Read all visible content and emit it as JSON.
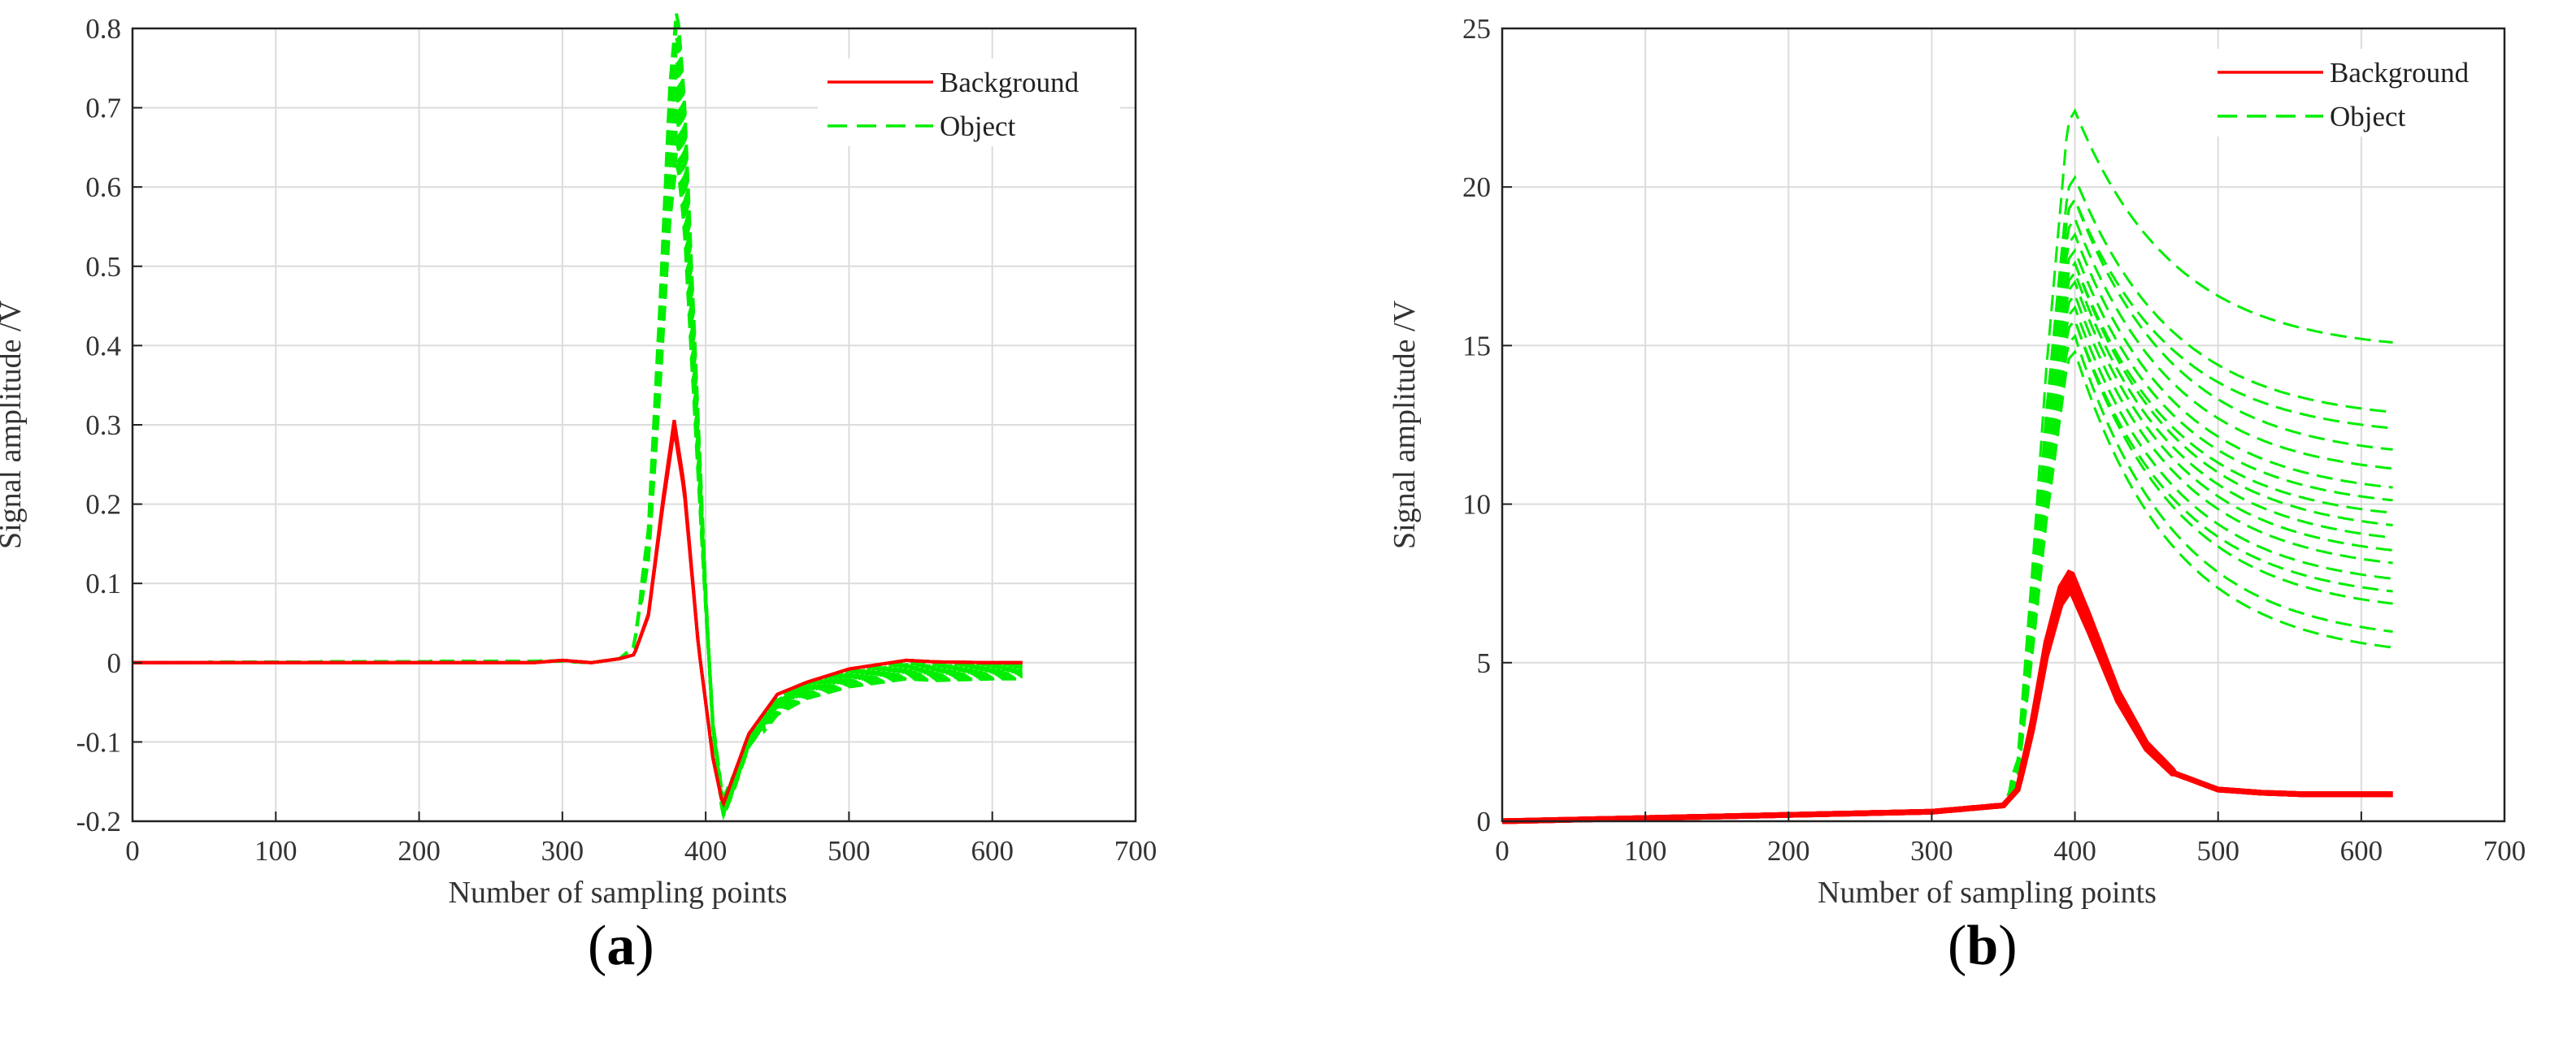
{
  "chart_data": [
    {
      "type": "line",
      "panel_label": "a",
      "xlabel": "Number of sampling points",
      "ylabel": "Signal amplitude /V",
      "xlim": [
        0,
        700
      ],
      "ylim": [
        -0.2,
        0.8
      ],
      "x_ticks": [
        "0",
        "100",
        "200",
        "300",
        "400",
        "500",
        "600",
        "700"
      ],
      "y_ticks": [
        "-0.2",
        "-0.1",
        "0",
        "0.1",
        "0.2",
        "0.3",
        "0.4",
        "0.5",
        "0.6",
        "0.7",
        "0.8"
      ],
      "grid": true,
      "legend_position": "top-right",
      "series": [
        {
          "name": "Background",
          "color": "#ff0000",
          "style": "solid",
          "x": [
            0,
            280,
            300,
            320,
            340,
            350,
            360,
            370,
            378,
            385,
            395,
            405,
            412,
            420,
            430,
            450,
            470,
            500,
            540,
            560,
            600,
            622
          ],
          "y": [
            0,
            0,
            0.003,
            0,
            0.005,
            0.01,
            0.06,
            0.2,
            0.3,
            0.22,
            0.02,
            -0.12,
            -0.18,
            -0.14,
            -0.09,
            -0.04,
            -0.025,
            -0.008,
            0.003,
            0.001,
            0,
            0
          ]
        },
        {
          "name": "Object",
          "color": "#00ee00",
          "style": "dashed",
          "x": [
            0,
            300,
            320,
            340,
            350,
            360,
            368,
            375,
            380,
            385,
            390,
            400,
            405,
            412,
            420,
            430,
            450,
            470,
            500,
            540,
            560,
            600,
            622
          ],
          "y": [
            0,
            0.002,
            0,
            0.005,
            0.02,
            0.15,
            0.4,
            0.65,
            0.74,
            0.64,
            0.45,
            0.08,
            -0.08,
            -0.185,
            -0.15,
            -0.1,
            -0.055,
            -0.035,
            -0.02,
            -0.01,
            -0.012,
            -0.01,
            -0.01
          ]
        }
      ]
    },
    {
      "type": "line",
      "panel_label": "b",
      "xlabel": "Number of sampling points",
      "ylabel": "Signal amplitude /V",
      "xlim": [
        0,
        700
      ],
      "ylim": [
        0,
        25
      ],
      "x_ticks": [
        "0",
        "100",
        "200",
        "300",
        "400",
        "500",
        "600",
        "700"
      ],
      "y_ticks": [
        "0",
        "5",
        "10",
        "15",
        "20",
        "25"
      ],
      "grid": true,
      "legend_position": "top-right",
      "series": [
        {
          "name": "Background",
          "color": "#ff0000",
          "style": "solid",
          "x": [
            0,
            100,
            200,
            300,
            350,
            360,
            370,
            380,
            390,
            397,
            410,
            430,
            450,
            470,
            500,
            530,
            560,
            600,
            622
          ],
          "y": [
            0,
            0.1,
            0.2,
            0.3,
            0.5,
            1.0,
            3.0,
            5.5,
            7.2,
            7.7,
            6.3,
            4.0,
            2.4,
            1.5,
            1.0,
            0.9,
            0.85,
            0.85,
            0.85
          ],
          "peak_range": [
            7.3,
            7.9
          ]
        },
        {
          "name": "Object",
          "color": "#00ee00",
          "style": "dashed",
          "x": [
            0,
            100,
            200,
            300,
            350,
            360,
            370,
            380,
            390,
            395,
            400
          ],
          "y": [
            0,
            0.1,
            0.2,
            0.3,
            0.5,
            1.5,
            6.0,
            11.0,
            15.0,
            17.0,
            17.3
          ],
          "peak_values": [
            14.8,
            15.3,
            15.8,
            16.2,
            16.6,
            17.0,
            17.3,
            17.6,
            18.0,
            18.5,
            19.0,
            19.6,
            20.3,
            22.4
          ],
          "end_values": [
            5.1,
            5.6,
            6.5,
            6.9,
            7.3,
            7.8,
            8.2,
            8.6,
            9.0,
            9.4,
            9.8,
            10.2,
            10.8,
            11.4,
            12.1,
            12.6,
            14.8
          ]
        }
      ]
    }
  ]
}
